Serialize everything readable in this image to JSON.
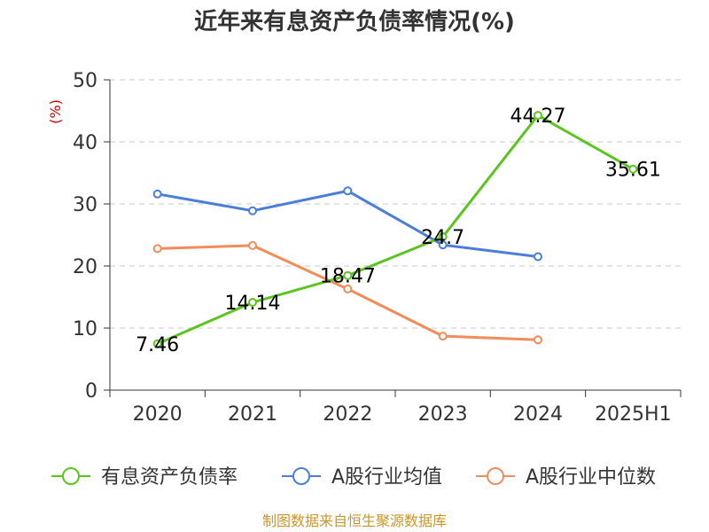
{
  "chart_data": {
    "type": "line",
    "title": "近年来有息资产负债率情况(%)",
    "ylabel": "(%)",
    "xlabel": "",
    "categories": [
      "2020",
      "2021",
      "2022",
      "2023",
      "2024",
      "2025H1"
    ],
    "ylim": [
      0,
      50
    ],
    "yticks": [
      0,
      10,
      20,
      30,
      40,
      50
    ],
    "grid": true,
    "legend_position": "bottom",
    "series": [
      {
        "name": "有息资产负债率",
        "color": "#5cc41e",
        "values": [
          7.46,
          14.14,
          18.47,
          24.7,
          44.27,
          35.61
        ],
        "labels": [
          "7.46",
          "14.14",
          "18.47",
          "24.7",
          "44.27",
          "35.61"
        ]
      },
      {
        "name": "A股行业均值",
        "color": "#4a7ed8",
        "values": [
          31.6,
          28.9,
          32.1,
          23.4,
          21.5,
          null
        ]
      },
      {
        "name": "A股行业中位数",
        "color": "#f28c5a",
        "values": [
          22.8,
          23.3,
          16.3,
          8.7,
          8.1,
          null
        ]
      }
    ],
    "source": "制图数据来自恒生聚源数据库"
  }
}
